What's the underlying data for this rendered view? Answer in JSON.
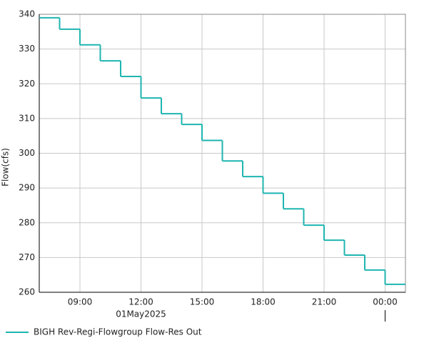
{
  "chart_data": {
    "type": "step",
    "y_label": "Flow(cfs)",
    "date_label": "01May2025",
    "x": [
      7,
      8,
      9,
      10,
      11,
      12,
      13,
      14,
      15,
      16,
      17,
      18,
      19,
      20,
      21,
      22,
      23,
      24
    ],
    "series": [
      {
        "name": "BIGH Rev-Regi-Flowgroup Flow-Res Out",
        "color": "#1fb5b0",
        "values": [
          339.0,
          335.7,
          331.2,
          326.6,
          322.1,
          315.9,
          311.4,
          308.3,
          303.7,
          297.8,
          293.3,
          288.5,
          284.0,
          279.3,
          275.0,
          270.7,
          266.4,
          262.3
        ]
      }
    ],
    "xlim": [
      7,
      25
    ],
    "xticks": [
      {
        "value": 9,
        "label": "09:00"
      },
      {
        "value": 12,
        "label": "12:00"
      },
      {
        "value": 15,
        "label": "15:00"
      },
      {
        "value": 18,
        "label": "18:00"
      },
      {
        "value": 21,
        "label": "21:00"
      },
      {
        "value": 24,
        "label": "00:00"
      }
    ],
    "ylim": [
      260,
      340
    ],
    "yticks": [
      260,
      270,
      280,
      290,
      300,
      310,
      320,
      330,
      340
    ],
    "grid": true
  }
}
